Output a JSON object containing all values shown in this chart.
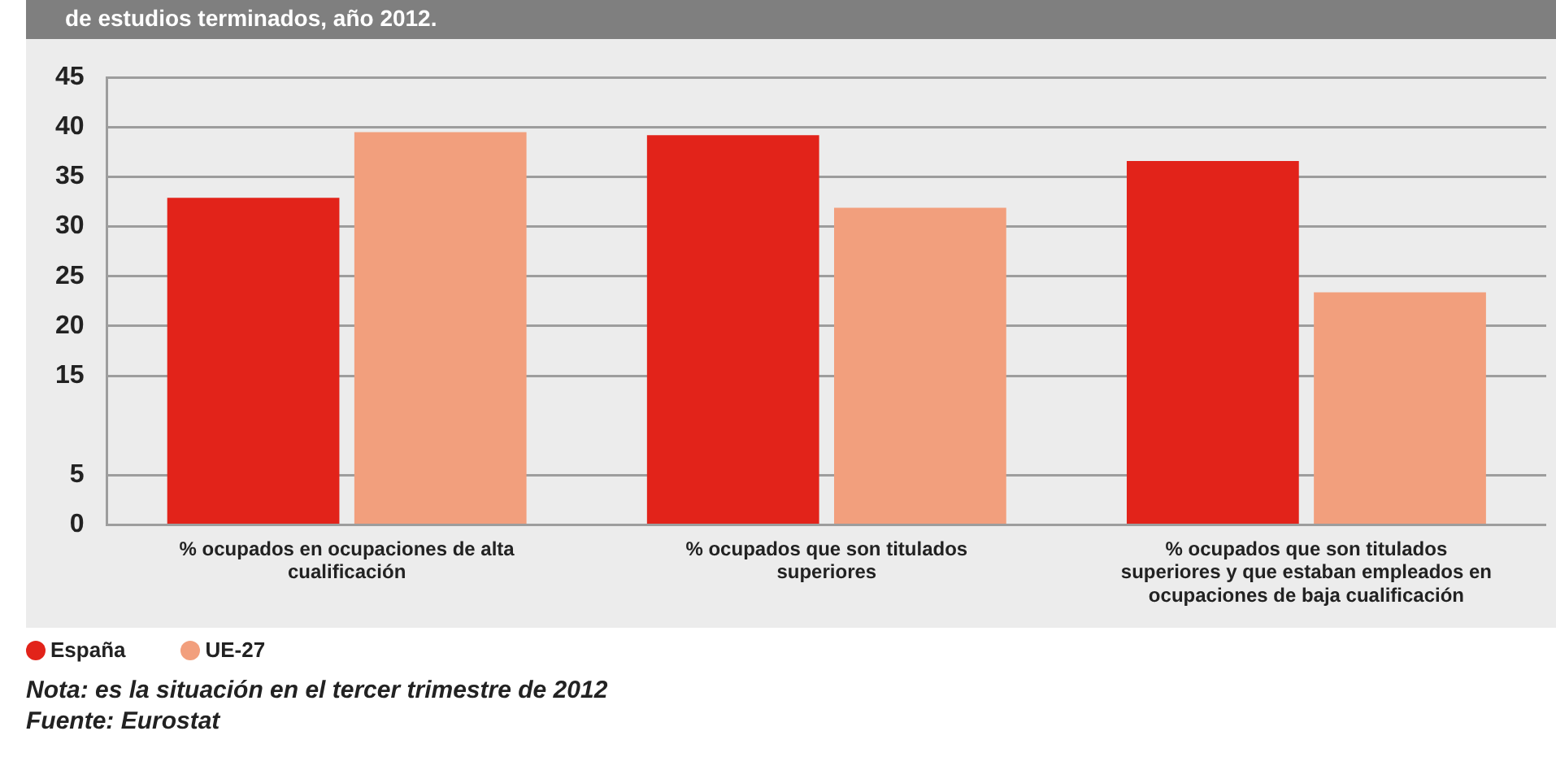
{
  "chart_data": {
    "type": "bar",
    "title": "de estudios terminados, año 2012.",
    "categories": [
      "% ocupados en ocupaciones de alta cualificación",
      "% ocupados que son titulados superiores",
      "% ocupados que son titulados superiores y que estaban empleados en ocupaciones de baja cualificación"
    ],
    "series": [
      {
        "name": "España",
        "color": "#e2231a",
        "values": [
          32.9,
          39.2,
          36.6
        ]
      },
      {
        "name": "UE-27",
        "color": "#f29f7d",
        "values": [
          39.5,
          31.9,
          23.4
        ]
      }
    ],
    "ylim": [
      0,
      45
    ],
    "yticks": [
      0,
      5,
      15,
      20,
      25,
      30,
      35,
      40,
      45
    ],
    "grid": "y",
    "legend": "bottom left",
    "annotations": [
      "Nota: es la situación en el tercer trimestre de 2012",
      "Fuente: Eurostat"
    ]
  }
}
